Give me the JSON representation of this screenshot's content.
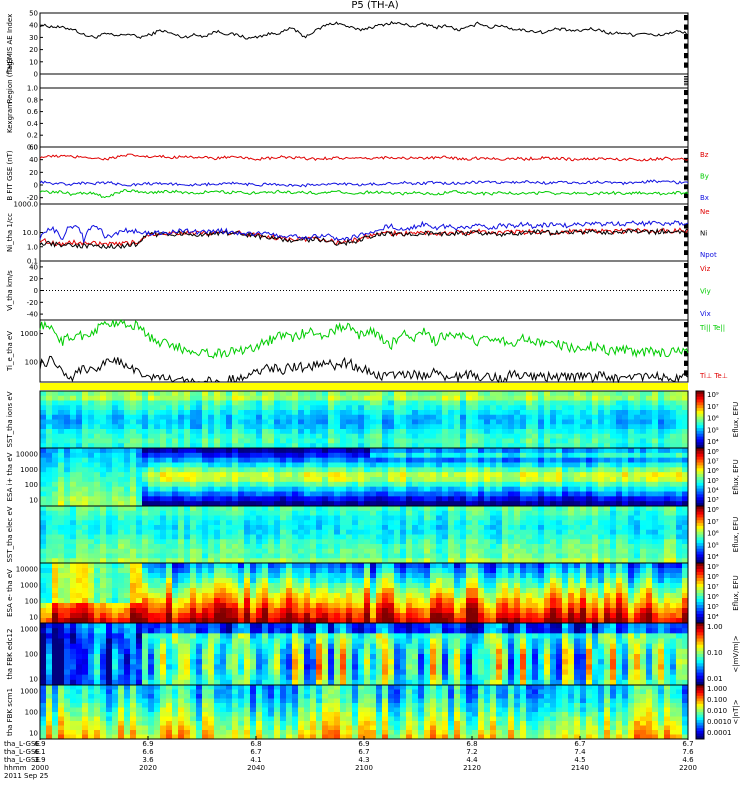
{
  "title": "P5 (TH-A)",
  "date_label": "2011 Sep 25",
  "footer_rows": [
    "tha_L-GSE",
    "tha_L-GSE",
    "tha_L-GSE",
    "hhmm"
  ],
  "colors": {
    "red": "#e00000",
    "green": "#00cc00",
    "blue": "#1010e0",
    "black": "#000000",
    "yellow": "#ffff00"
  },
  "chart_data": [
    {
      "type": "line",
      "ylabel": "THEMIS AE Index",
      "ylim": [
        0,
        50
      ],
      "ticks": [
        "50",
        "40",
        "30",
        "20",
        "10",
        "0"
      ],
      "tick_vals": [
        50,
        40,
        30,
        20,
        10,
        0
      ],
      "series": [
        {
          "color": "black",
          "values": [
            40,
            39,
            38,
            37,
            32,
            30,
            33,
            31,
            33,
            30,
            32,
            36,
            33,
            30,
            32,
            31,
            35,
            33,
            32,
            29,
            31,
            33,
            34,
            38,
            30,
            35,
            40,
            42,
            39,
            36,
            38,
            40,
            42,
            41,
            39,
            41,
            38,
            40,
            36,
            38,
            42,
            38,
            40,
            37,
            36,
            35,
            34,
            37,
            36,
            35,
            37,
            36,
            33,
            34,
            32,
            34,
            31,
            33,
            35,
            33
          ]
        }
      ]
    },
    {
      "type": "line",
      "ylabel": "Region (flag)",
      "ticks": [],
      "series": []
    },
    {
      "type": "line",
      "ylabel": "Kexgram",
      "ylim": [
        0,
        1
      ],
      "ticks": [
        "1.0",
        "0.8",
        "0.6",
        "0.4",
        "0.2",
        "0.0"
      ],
      "tick_vals": [
        1,
        0.8,
        0.6,
        0.4,
        0.2,
        0
      ],
      "series": []
    },
    {
      "type": "line",
      "ylabel": "B FIT GSE (nT)",
      "ylim": [
        -30,
        60
      ],
      "ticks": [
        "60",
        "40",
        "20",
        "0",
        "-20"
      ],
      "tick_vals": [
        60,
        40,
        20,
        0,
        -20
      ],
      "legend": [
        {
          "label": "Bz",
          "color": "red"
        },
        {
          "label": "By",
          "color": "green"
        },
        {
          "label": "Bx",
          "color": "blue"
        }
      ],
      "series": [
        {
          "name": "Bz",
          "color": "red",
          "values": [
            44,
            45,
            46,
            44,
            45,
            42,
            41,
            44,
            47,
            46,
            44,
            45,
            43,
            46,
            44,
            43,
            42,
            44,
            43,
            42,
            41,
            42,
            44,
            43,
            42,
            41,
            42,
            43,
            42,
            41,
            42,
            43,
            44,
            42,
            43,
            42,
            43,
            44,
            42,
            41,
            43,
            42,
            41,
            42,
            41,
            42,
            43,
            42,
            41,
            40,
            41,
            42,
            41,
            40,
            41,
            40,
            41,
            42,
            40,
            41
          ]
        },
        {
          "name": "By",
          "color": "green",
          "values": [
            -10,
            -12,
            -11,
            -15,
            -12,
            -14,
            -20,
            -12,
            -8,
            -10,
            -12,
            -11,
            -10,
            -12,
            -13,
            -11,
            -10,
            -12,
            -11,
            -13,
            -12,
            -11,
            -10,
            -12,
            -11,
            -13,
            -12,
            -11,
            -12,
            -13,
            -11,
            -12,
            -13,
            -14,
            -12,
            -13,
            -14,
            -12,
            -11,
            -12,
            -13,
            -14,
            -12,
            -13,
            -14,
            -13,
            -12,
            -14,
            -13,
            -12,
            -14,
            -13,
            -12,
            -14,
            -13,
            -12,
            -13,
            -14,
            -12,
            -13
          ]
        },
        {
          "name": "Bx",
          "color": "blue",
          "values": [
            5,
            3,
            2,
            1,
            3,
            2,
            4,
            2,
            0,
            1,
            2,
            3,
            1,
            2,
            0,
            1,
            2,
            3,
            2,
            1,
            0,
            2,
            1,
            0,
            -1,
            1,
            0,
            2,
            1,
            0,
            1,
            2,
            3,
            4,
            2,
            3,
            4,
            2,
            3,
            4,
            5,
            4,
            3,
            4,
            5,
            4,
            3,
            5,
            4,
            3,
            4,
            5,
            4,
            3,
            4,
            5,
            6,
            5,
            4,
            5
          ]
        }
      ]
    },
    {
      "type": "line",
      "ylabel": "Ni_tha 1/cc",
      "yscale": "log",
      "ylim": [
        0.1,
        1000
      ],
      "ticks": [
        "1000.0",
        "10.0",
        "1.0",
        "0.1"
      ],
      "tick_vals": [
        1000,
        10,
        1,
        0.1
      ],
      "legend": [
        {
          "label": "Ne",
          "color": "red"
        },
        {
          "label": "Ni",
          "color": "black"
        },
        {
          "label": "Npot",
          "color": "blue"
        }
      ],
      "series": [
        {
          "name": "Ne",
          "color": "red",
          "values": [
            3,
            2,
            1.5,
            2,
            1.8,
            1.6,
            1.5,
            1.4,
            1.8,
            2,
            8,
            9,
            9,
            10,
            9,
            8,
            9,
            10,
            9,
            8,
            6,
            5,
            4,
            3,
            3.5,
            4,
            3,
            2,
            2.5,
            3,
            6,
            8,
            9,
            8,
            9,
            10,
            9,
            8,
            10,
            9,
            12,
            10,
            9,
            11,
            10,
            12,
            11,
            10,
            12,
            11,
            13,
            12,
            11,
            12,
            14,
            13,
            12,
            14,
            13,
            15
          ]
        },
        {
          "name": "Ni",
          "color": "black",
          "values": [
            2,
            1.6,
            1.3,
            1.4,
            1.2,
            1.1,
            1.0,
            1.1,
            1.3,
            1.5,
            7,
            8,
            8,
            9,
            8,
            7,
            8,
            9,
            8,
            7,
            5,
            4,
            3.5,
            2.5,
            3,
            3.5,
            2.6,
            1.8,
            2,
            2.6,
            5,
            7,
            8,
            7,
            8,
            9,
            8,
            7,
            9,
            8,
            10,
            9,
            8,
            10,
            9,
            11,
            10,
            9,
            11,
            10,
            12,
            11,
            10,
            11,
            13,
            12,
            11,
            13,
            12,
            14
          ]
        },
        {
          "name": "Npot",
          "color": "blue",
          "values": [
            5,
            20,
            3,
            30,
            2,
            25,
            4,
            8,
            15,
            10,
            9,
            10,
            12,
            15,
            11,
            10,
            14,
            12,
            10,
            9,
            8,
            7,
            5,
            6,
            4,
            5,
            7,
            3,
            4,
            6,
            10,
            20,
            30,
            15,
            25,
            40,
            18,
            30,
            20,
            25,
            35,
            22,
            30,
            28,
            40,
            26,
            32,
            38,
            30,
            36,
            42,
            34,
            40,
            36,
            44,
            38,
            46,
            40,
            48,
            42
          ]
        }
      ]
    },
    {
      "type": "line",
      "ylabel": "Vi_tha km/s",
      "ylim": [
        -50,
        50
      ],
      "ticks": [
        "40",
        "20",
        "0",
        "-20",
        "-40"
      ],
      "tick_vals": [
        40,
        20,
        0,
        -20,
        -40
      ],
      "legend": [
        {
          "label": "Viz",
          "color": "red"
        },
        {
          "label": "Viy",
          "color": "green"
        },
        {
          "label": "Vix",
          "color": "blue"
        }
      ],
      "series": []
    },
    {
      "type": "line",
      "ylabel": "Ti_e_tha eV",
      "yscale": "log",
      "ylim": [
        20,
        3000
      ],
      "ticks": [
        "1000",
        "100"
      ],
      "tick_vals": [
        1000,
        100
      ],
      "legend": [
        {
          "label": "Ti|| Te||",
          "color": "green"
        },
        {
          "label": "Ti⊥ Te⊥",
          "color": "red"
        }
      ],
      "series": [
        {
          "name": "Ti",
          "color": "green",
          "values": [
            2000,
            1500,
            500,
            800,
            900,
            1200,
            2500,
            2400,
            2000,
            1800,
            700,
            500,
            350,
            300,
            250,
            220,
            200,
            210,
            260,
            300,
            400,
            600,
            900,
            700,
            1000,
            1200,
            800,
            1500,
            1800,
            900,
            1200,
            700,
            400,
            1000,
            600,
            1100,
            500,
            900,
            700,
            800,
            450,
            700,
            600,
            500,
            650,
            500,
            400,
            450,
            350,
            300,
            380,
            300,
            250,
            270,
            230,
            220,
            240,
            210,
            220,
            200
          ]
        },
        {
          "name": "Te",
          "color": "black",
          "values": [
            80,
            120,
            40,
            30,
            60,
            50,
            100,
            130,
            60,
            40,
            30,
            25,
            22,
            20,
            21,
            22,
            20,
            22,
            28,
            40,
            55,
            60,
            50,
            70,
            65,
            80,
            90,
            70,
            100,
            60,
            45,
            35,
            30,
            40,
            38,
            34,
            45,
            30,
            28,
            35,
            32,
            30,
            28,
            35,
            30,
            28,
            32,
            30,
            28,
            30,
            28,
            32,
            30,
            28,
            30,
            29,
            31,
            28,
            30,
            29
          ]
        }
      ]
    },
    {
      "type": "heatmap",
      "ylabel": "SST_tha ions eV",
      "cbar_label": "Eflux, EFU",
      "cbar_ticks": [
        "10⁹",
        "10⁷",
        "10⁶",
        "10⁵",
        "10⁴"
      ]
    },
    {
      "type": "heatmap",
      "ylabel": "ESA i+ tha eV",
      "yticks": [
        "10000",
        "1000",
        "100",
        "10"
      ],
      "cbar_label": "Eflux, EFU",
      "cbar_ticks": [
        "10⁸",
        "10⁷",
        "10⁶",
        "10⁵",
        "10⁴",
        "10³"
      ]
    },
    {
      "type": "heatmap",
      "ylabel": "SST_tha elec eV",
      "cbar_label": "Eflux, EFU",
      "cbar_ticks": [
        "10⁸",
        "10⁷",
        "10⁶",
        "10⁵",
        "10⁴"
      ]
    },
    {
      "type": "heatmap",
      "ylabel": "ESA e- tha eV",
      "yticks": [
        "10000",
        "1000",
        "100",
        "10"
      ],
      "cbar_label": "Eflux, EFU",
      "cbar_ticks": [
        "10⁹",
        "10⁸",
        "10⁷",
        "10⁶",
        "10⁵",
        "10⁴"
      ]
    },
    {
      "type": "heatmap",
      "ylabel": "tha FBK edc12",
      "yticks": [
        "1000",
        "100",
        "10"
      ],
      "cbar_label": "<|mV/m|>",
      "cbar_ticks": [
        "1.00",
        "0.10",
        "0.01"
      ]
    },
    {
      "type": "heatmap",
      "ylabel": "tha FBK scm1",
      "yticks": [
        "1000",
        "100",
        "10"
      ],
      "cbar_label": "<|nT|>",
      "cbar_ticks": [
        "1.000",
        "0.100",
        "0.010",
        "0.0010",
        "0.0001"
      ]
    }
  ],
  "xaxis": {
    "hhmm": [
      "2000",
      "2020",
      "2040",
      "2100",
      "2120",
      "2140",
      "2200"
    ],
    "rows": [
      [
        "6.9",
        "6.9",
        "6.8",
        "6.9",
        "6.8",
        "6.7",
        "6.7"
      ],
      [
        "6.1",
        "6.6",
        "6.7",
        "6.7",
        "7.2",
        "7.4",
        "7.6"
      ],
      [
        "3.9",
        "3.6",
        "4.1",
        "4.3",
        "4.4",
        "4.5",
        "4.6"
      ]
    ]
  }
}
